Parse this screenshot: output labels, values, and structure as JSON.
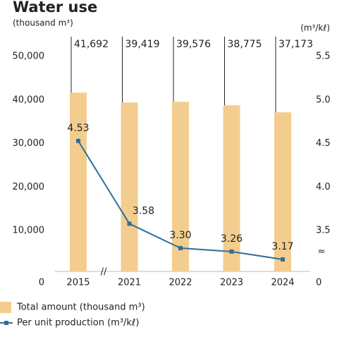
{
  "chart_data": {
    "type": "bar_line",
    "title": "Water use",
    "y_label": "(thousand m³)",
    "y2_label": "(m³/kℓ)",
    "categories": [
      "2015",
      "2021",
      "2022",
      "2023",
      "2024"
    ],
    "series": [
      {
        "name": "Total amount (thousand m³)",
        "type": "bar",
        "color": "#f3cd8f",
        "values": [
          41692,
          39419,
          39576,
          38775,
          37173
        ],
        "value_labels": [
          "41,692",
          "39,419",
          "39,576",
          "38,775",
          "37,173"
        ]
      },
      {
        "name": "Per unit production (m³/kℓ)",
        "type": "line",
        "axis": "y2",
        "color": "#2f6f97",
        "values": [
          4.53,
          3.58,
          3.3,
          3.26,
          3.17
        ],
        "value_labels": [
          "4.53",
          "3.58",
          "3.30",
          "3.26",
          "3.17"
        ]
      }
    ],
    "ylim": [
      0,
      50000
    ],
    "yticks": [
      0,
      {
        "value": 10000,
        "label": "10,000"
      },
      {
        "value": 20000,
        "label": "20,000"
      },
      {
        "value": 30000,
        "label": "30,000"
      },
      {
        "value": 40000,
        "label": "40,000"
      },
      {
        "value": 50000,
        "label": "50,000"
      }
    ],
    "y2lim": [
      3,
      5.5
    ],
    "y2ticks": [
      0,
      3.5,
      {
        "value": 4,
        "label": "4.0"
      },
      4.5,
      {
        "value": 5,
        "label": "5.0"
      },
      5.5
    ],
    "y2_break": [
      0,
      3
    ],
    "legend": "bottom-left"
  }
}
